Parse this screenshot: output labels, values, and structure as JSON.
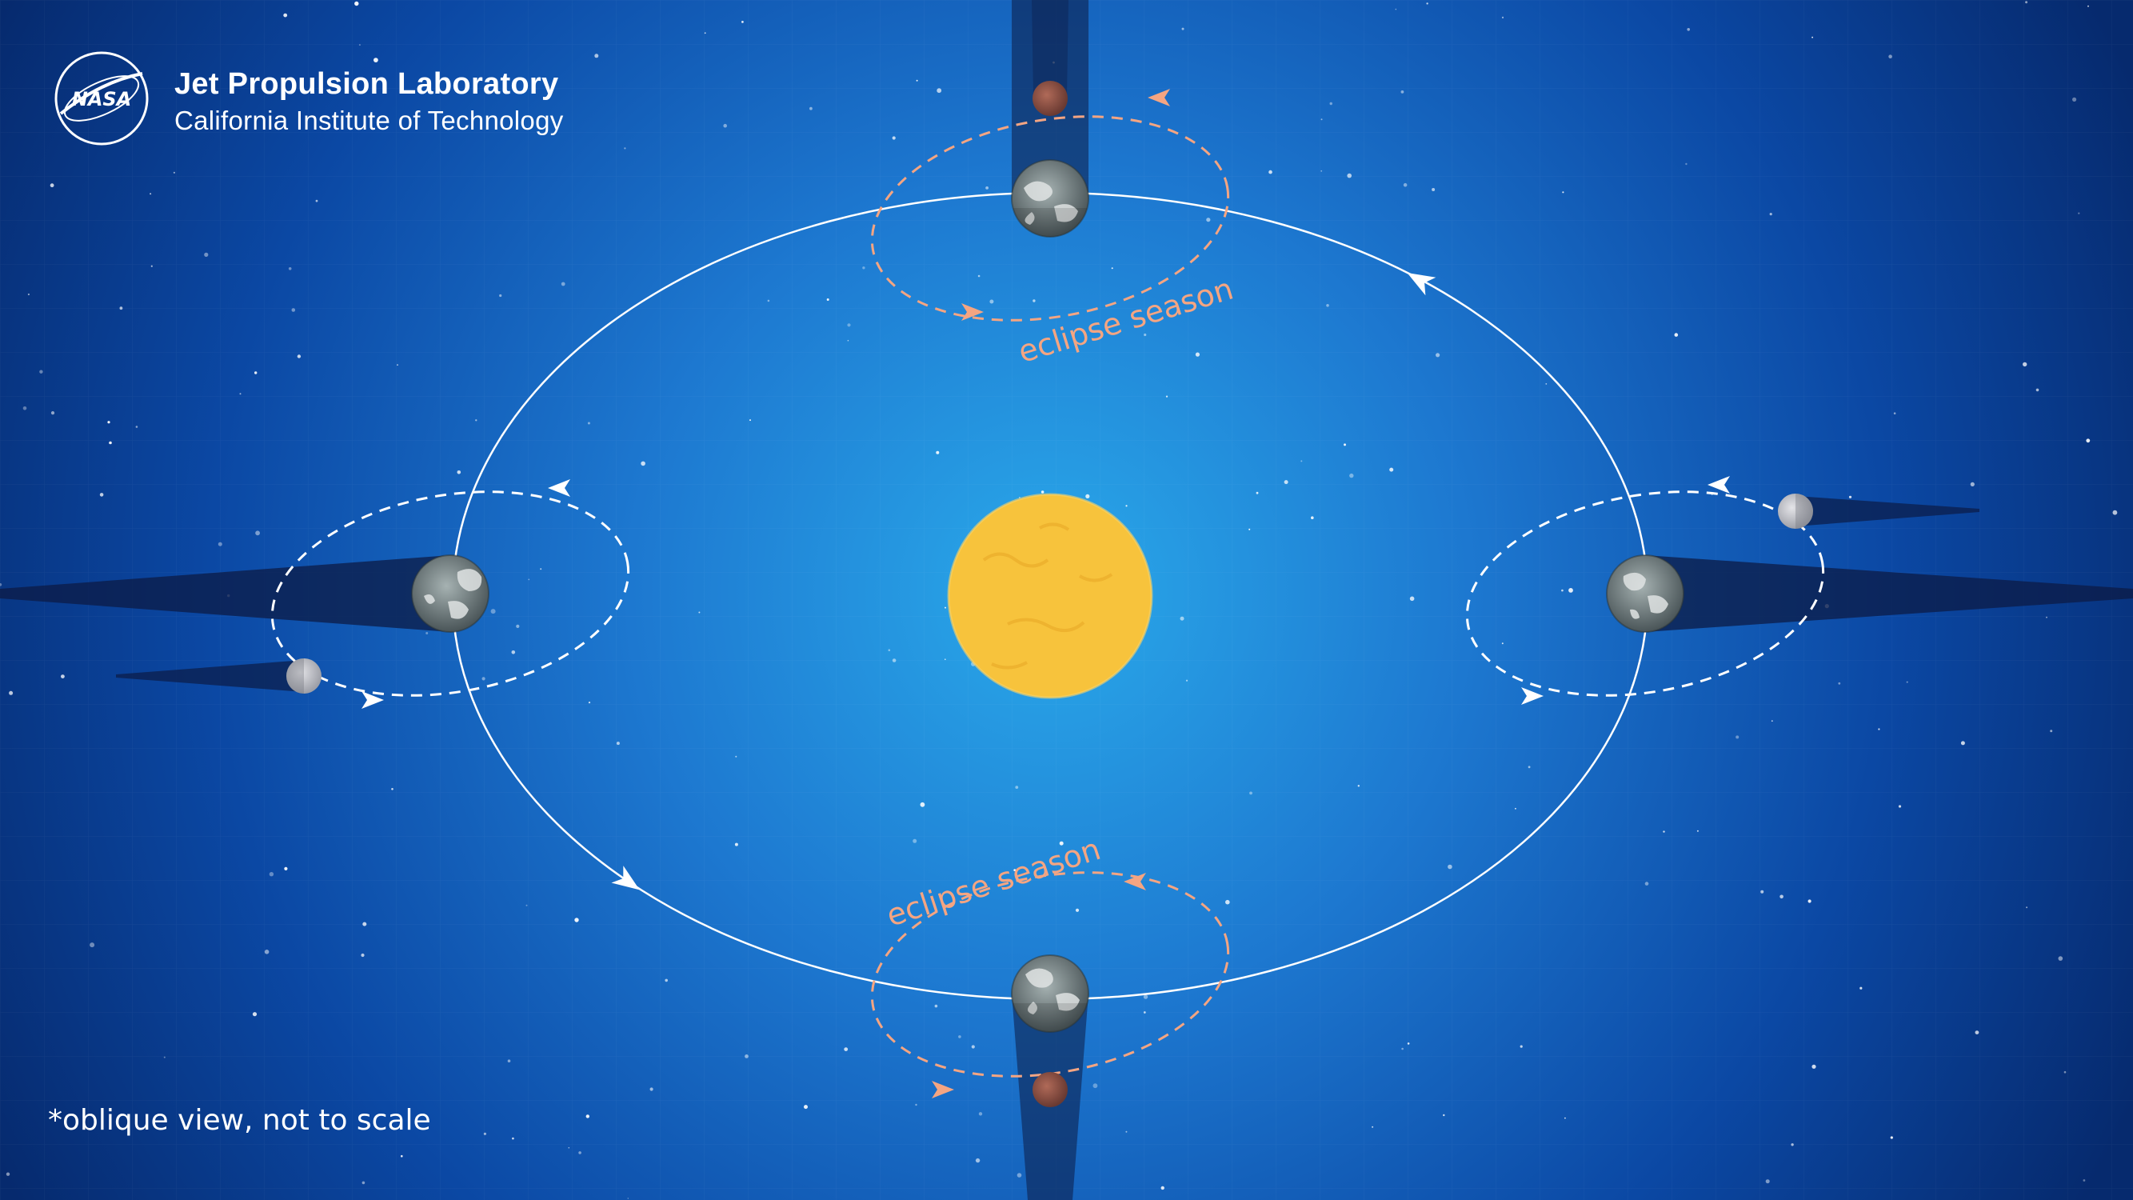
{
  "header": {
    "org_name": "Jet Propulsion Laboratory",
    "org_subtitle": "California Institute of Technology",
    "badge_text": "NASA"
  },
  "labels": {
    "eclipse_top": "eclipse season",
    "eclipse_bottom": "eclipse season"
  },
  "footnote": "*oblique view, not to scale",
  "colors": {
    "background_center": "#2aa9ea",
    "background_edge": "#062a6e",
    "sun": "#f7c33c",
    "orbit": "#ffffff",
    "eclipse_orbit": "#f4a582",
    "eclipse_text": "#f4a582",
    "earth": "#7e8a8c",
    "moon_normal": "#c9c9cd",
    "moon_eclipsed": "#9a5a4c",
    "shadow": "#0c1b46"
  },
  "icons": {
    "sun": "sun-icon",
    "earth": "earth-icon",
    "moon": "moon-icon",
    "logo": "nasa-meatball-logo"
  }
}
